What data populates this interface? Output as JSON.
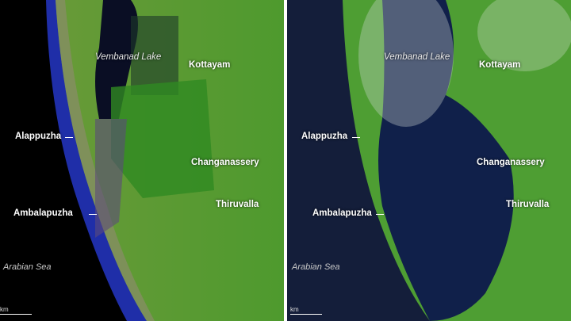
{
  "panels": [
    {
      "labels": {
        "lake": "Vembanad Lake",
        "kottayam": "Kottayam",
        "alappuzha": "Alappuzha",
        "changanassery": "Changanassery",
        "ambalapuzha": "Ambalapuzha",
        "thiruvalla": "Thiruvalla",
        "sea": "Arabian Sea"
      },
      "scale": "km"
    },
    {
      "labels": {
        "lake": "Vembanad Lake",
        "kottayam": "Kottayam",
        "alappuzha": "Alappuzha",
        "changanassery": "Changanassery",
        "ambalapuzha": "Ambalapuzha",
        "thiruvalla": "Thiruvalla",
        "sea": "Arabian Sea"
      },
      "scale": "km"
    }
  ],
  "colors": {
    "sea_left": "#000000",
    "coast_left": "#1a2fa0",
    "land": "#4f9a35",
    "sea_right": "#141e3a",
    "flood": "#10204a"
  }
}
